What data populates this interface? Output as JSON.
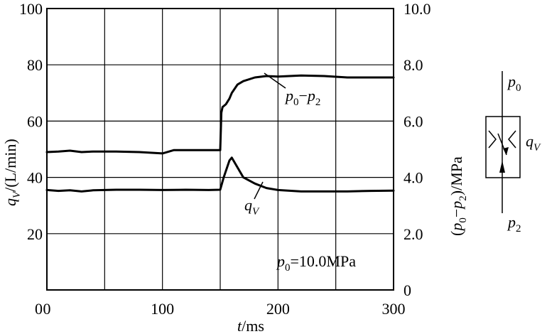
{
  "chart_data": {
    "type": "line",
    "xlabel_var": "t",
    "xlabel_unit": "/ms",
    "xlim": [
      0,
      300
    ],
    "x_ticks": [
      "0",
      "100",
      "200",
      "300"
    ],
    "ylabel_left": {
      "var": "q",
      "sub": "V",
      "unit": "/(L/min)"
    },
    "ylim_left": [
      0,
      100
    ],
    "y_left_ticks": [
      "0",
      "20",
      "40",
      "60",
      "80",
      "100"
    ],
    "ylabel_right": {
      "open": "(",
      "p0": "p",
      "p0_sub": "0",
      "minus": "−",
      "p2": "p",
      "p2_sub": "2",
      "unit": ")/MPa"
    },
    "ylim_right": [
      0,
      10
    ],
    "y_right_ticks": [
      "0",
      "2.0",
      "4.0",
      "6.0",
      "8.0",
      "10.0"
    ],
    "grid": true,
    "series": [
      {
        "name": "p0−p2",
        "label": {
          "p": "p",
          "sub0": "0",
          "minus": "−",
          "p2": "p",
          "sub2": "2"
        },
        "axis": "right",
        "x": [
          0,
          10,
          20,
          30,
          40,
          60,
          80,
          100,
          110,
          130,
          150,
          151,
          152,
          155,
          158,
          160,
          165,
          170,
          180,
          190,
          200,
          220,
          240,
          260,
          280,
          300
        ],
        "values": [
          4.9,
          4.92,
          4.95,
          4.9,
          4.92,
          4.92,
          4.9,
          4.85,
          4.97,
          4.97,
          4.97,
          6.3,
          6.5,
          6.6,
          6.8,
          7.0,
          7.3,
          7.42,
          7.55,
          7.6,
          7.58,
          7.62,
          7.6,
          7.55,
          7.55,
          7.55
        ]
      },
      {
        "name": "qV",
        "label": {
          "q": "q",
          "sub": "V"
        },
        "axis": "left",
        "x": [
          0,
          10,
          20,
          30,
          40,
          60,
          80,
          100,
          120,
          140,
          150,
          153,
          158,
          160,
          165,
          170,
          180,
          190,
          200,
          220,
          240,
          260,
          280,
          300
        ],
        "values": [
          35.5,
          35.2,
          35.4,
          35.0,
          35.4,
          35.6,
          35.6,
          35.5,
          35.6,
          35.5,
          35.6,
          40.0,
          46.0,
          47.0,
          43.5,
          40.0,
          37.8,
          36.2,
          35.5,
          35.0,
          35.0,
          35.0,
          35.2,
          35.3
        ]
      }
    ],
    "annotation": {
      "p": "p",
      "sub": "0",
      "rest": "=10.0MPa"
    }
  },
  "symbol": {
    "top_label": {
      "p": "p",
      "sub": "0"
    },
    "bottom_label": {
      "p": "p",
      "sub": "2"
    },
    "side_label": {
      "q": "q",
      "sub": "V"
    }
  }
}
